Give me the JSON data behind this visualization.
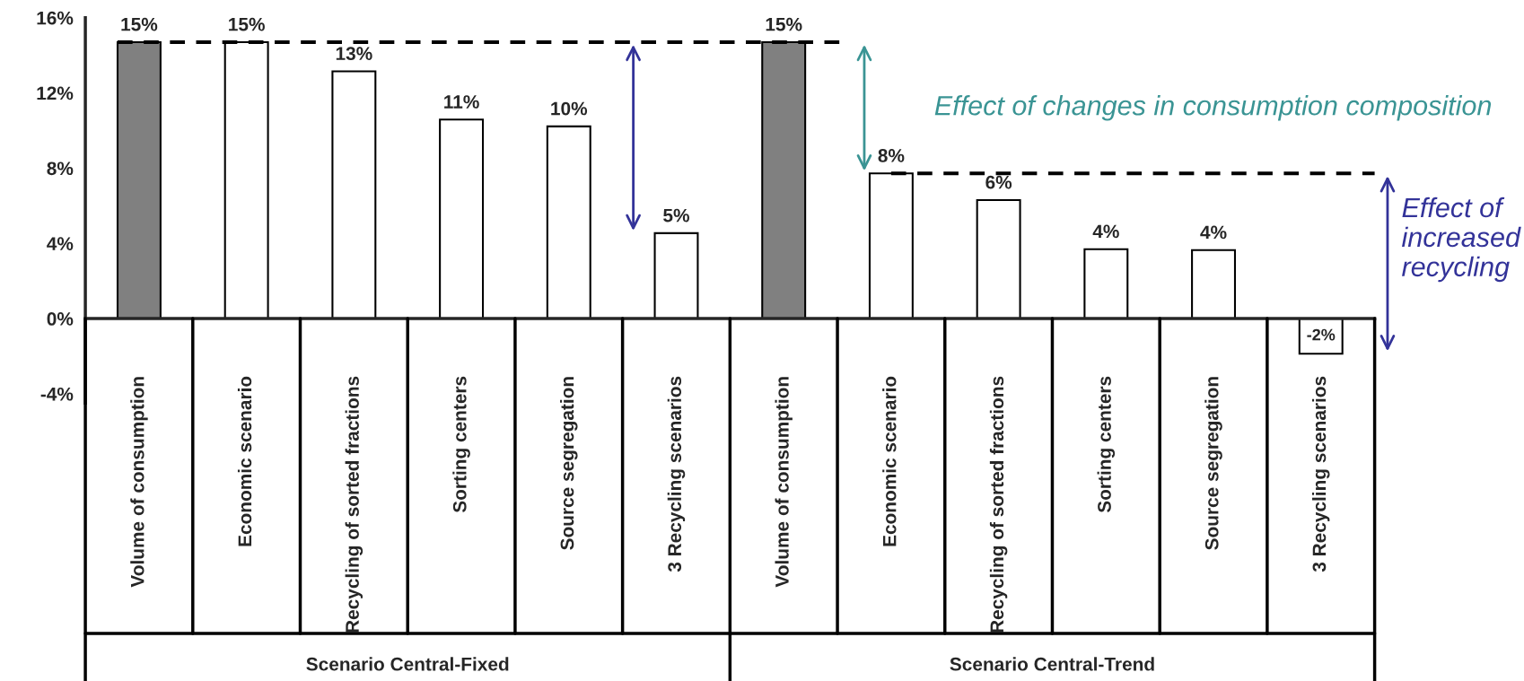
{
  "chart_data": {
    "type": "bar",
    "categories": [
      "Volume of consumption",
      "Economic scenario",
      "Recycling of sorted fractions",
      "Sorting centers",
      "Source segregation",
      "3 Recycling scenarios",
      "Volume of consumption",
      "Economic scenario",
      "Recycling of sorted fractions",
      "Sorting centers",
      "Source segregation",
      "3 Recycling scenarios"
    ],
    "values": [
      14.7,
      14.7,
      13.15,
      10.58,
      10.22,
      4.54,
      14.7,
      7.72,
      6.3,
      3.69,
      3.64,
      -1.87
    ],
    "colors": [
      "#808080",
      "#ffffff",
      "#ffffff",
      "#ffffff",
      "#ffffff",
      "#ffffff",
      "#808080",
      "#ffffff",
      "#ffffff",
      "#ffffff",
      "#ffffff",
      "#ffffff"
    ],
    "value_labels": [
      "15%",
      "15%",
      "13%",
      "11%",
      "10%",
      "5%",
      "15%",
      "8%",
      "6%",
      "4%",
      "4%",
      "-2%"
    ],
    "ylim": [
      -4.5,
      16
    ],
    "yticks": [
      {
        "value": -4,
        "label": "-4%"
      },
      {
        "value": 0,
        "label": "0%"
      },
      {
        "value": 4,
        "label": "4%"
      },
      {
        "value": 8,
        "label": "8%"
      },
      {
        "value": 12,
        "label": "12%"
      },
      {
        "value": 16,
        "label": "16%"
      }
    ],
    "ref_lines": [
      {
        "axis": "y",
        "value": 14.7,
        "color": "#000000",
        "line_style": "dashed"
      },
      {
        "axis": "y",
        "value": 7.72,
        "color": "#000000",
        "line_style": "dashed"
      }
    ],
    "annotations": [
      "Scenario Central-Fixed",
      "Scenario Central-Trend",
      "Effect of changes in consumption composition",
      "Effect of increased recycling"
    ],
    "grid": false
  }
}
